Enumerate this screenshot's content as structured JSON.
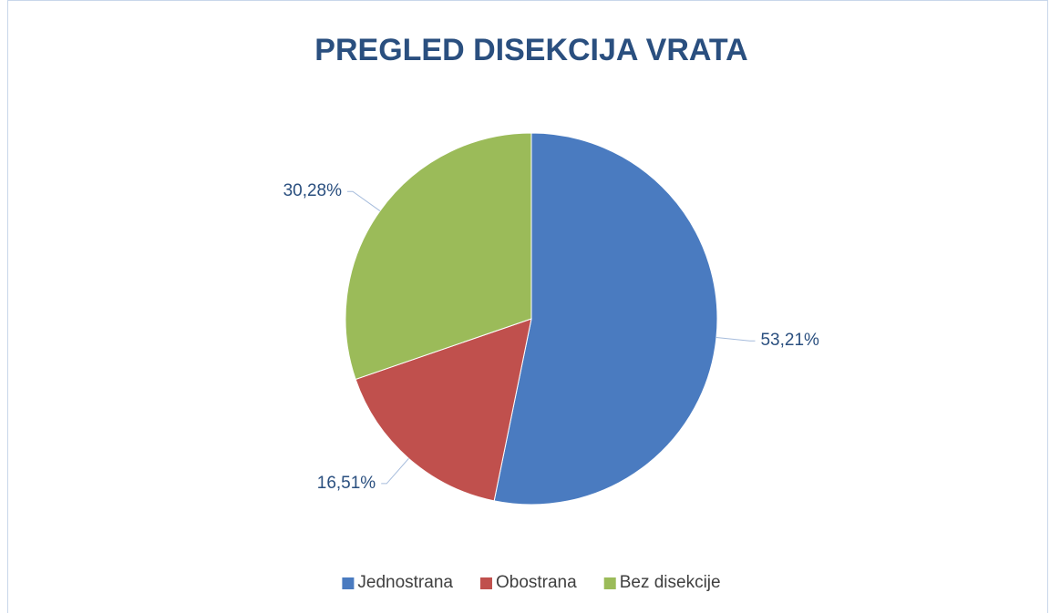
{
  "chart_data": {
    "type": "pie",
    "title": "PREGLED DISEKCIJA VRATA",
    "categories": [
      "Jednostrana",
      "Obostrana",
      "Bez disekcije"
    ],
    "values": [
      53.21,
      16.51,
      30.28
    ],
    "value_labels": [
      "53,21%",
      "16,51%",
      "30,28%"
    ],
    "colors": [
      "#4a7bc0",
      "#c0504d",
      "#9bbb59"
    ],
    "legend": "bottom"
  }
}
